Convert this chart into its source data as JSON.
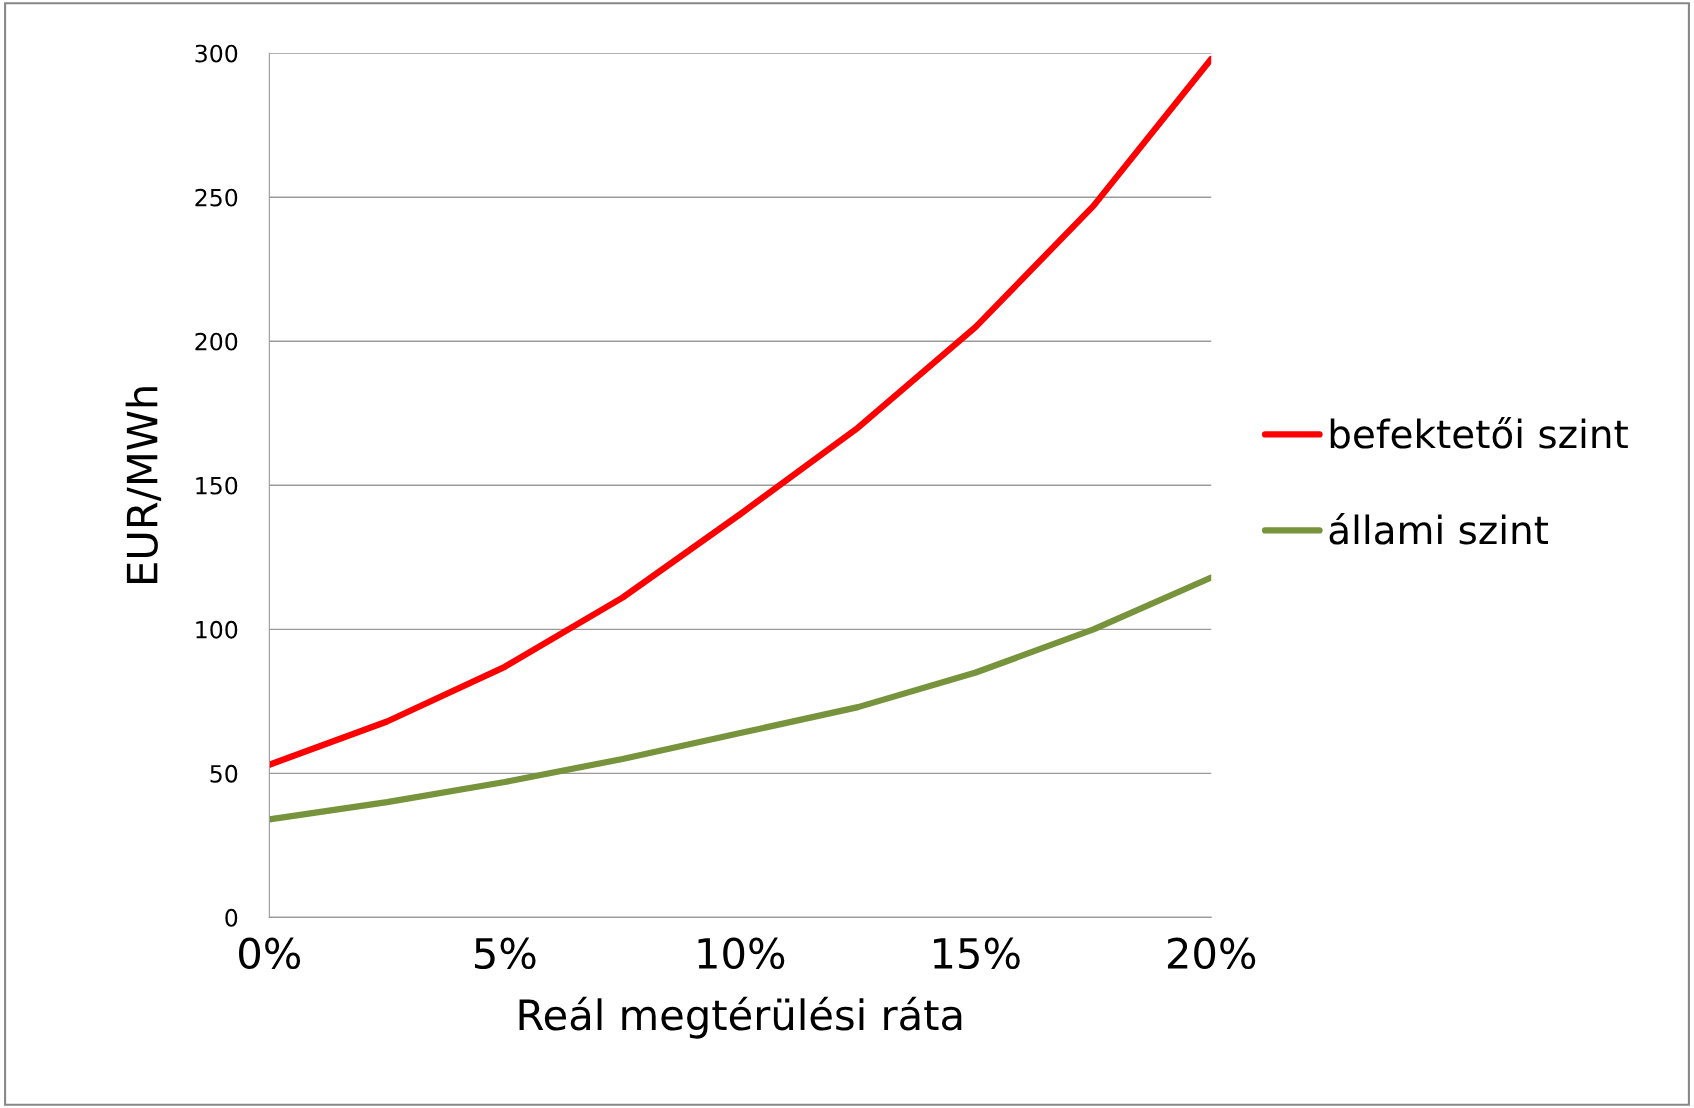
{
  "chart_data": {
    "type": "line",
    "xlabel": "Reál megtérülési ráta",
    "ylabel": "EUR/MWh",
    "x": [
      0,
      2.5,
      5,
      7.5,
      10,
      12.5,
      15,
      17.5,
      20
    ],
    "series": [
      {
        "name": "befektetői szint",
        "color": "#ff0000",
        "values": [
          53,
          68,
          87,
          111,
          140,
          170,
          205,
          247,
          298
        ]
      },
      {
        "name": "állami szint",
        "color": "#77933c",
        "values": [
          34,
          40,
          47,
          55,
          64,
          73,
          85,
          100,
          118
        ]
      }
    ],
    "xlim": [
      0,
      20
    ],
    "xticks": [
      {
        "value": 0,
        "label": "0%"
      },
      {
        "value": 5,
        "label": "5%"
      },
      {
        "value": 10,
        "label": "10%"
      },
      {
        "value": 15,
        "label": "15%"
      },
      {
        "value": 20,
        "label": "20%"
      }
    ],
    "ylim": [
      0,
      300
    ],
    "yticks": [
      0,
      50,
      100,
      150,
      200,
      250,
      300
    ],
    "grid": "y",
    "legend": "right",
    "marker": "none",
    "line_style": "solid"
  }
}
